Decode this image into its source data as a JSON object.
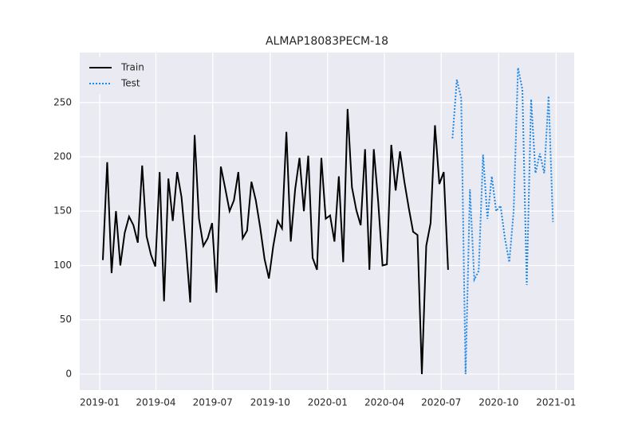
{
  "chart_data": {
    "type": "line",
    "title": "ALMAP18083PECM-18",
    "series": [
      {
        "name": "Train",
        "color": "#000000",
        "dash": "solid",
        "x": [
          "2019-01-06",
          "2019-01-13",
          "2019-01-20",
          "2019-01-27",
          "2019-02-03",
          "2019-02-10",
          "2019-02-17",
          "2019-02-24",
          "2019-03-03",
          "2019-03-10",
          "2019-03-17",
          "2019-03-24",
          "2019-03-31",
          "2019-04-07",
          "2019-04-14",
          "2019-04-21",
          "2019-04-28",
          "2019-05-05",
          "2019-05-12",
          "2019-05-19",
          "2019-05-26",
          "2019-06-02",
          "2019-06-09",
          "2019-06-16",
          "2019-06-23",
          "2019-06-30",
          "2019-07-07",
          "2019-07-14",
          "2019-07-21",
          "2019-07-28",
          "2019-08-04",
          "2019-08-11",
          "2019-08-18",
          "2019-08-25",
          "2019-09-01",
          "2019-09-08",
          "2019-09-15",
          "2019-09-22",
          "2019-09-29",
          "2019-10-06",
          "2019-10-13",
          "2019-10-20",
          "2019-10-27",
          "2019-11-03",
          "2019-11-10",
          "2019-11-17",
          "2019-11-24",
          "2019-12-01",
          "2019-12-08",
          "2019-12-15",
          "2019-12-22",
          "2019-12-29",
          "2020-01-05",
          "2020-01-12",
          "2020-01-19",
          "2020-01-26",
          "2020-02-02",
          "2020-02-09",
          "2020-02-16",
          "2020-02-23",
          "2020-03-01",
          "2020-03-08",
          "2020-03-15",
          "2020-03-22",
          "2020-03-29",
          "2020-04-05",
          "2020-04-12",
          "2020-04-19",
          "2020-04-26",
          "2020-05-03",
          "2020-05-10",
          "2020-05-17",
          "2020-05-24",
          "2020-05-31",
          "2020-06-07",
          "2020-06-14",
          "2020-06-21",
          "2020-06-28",
          "2020-07-05",
          "2020-07-12"
        ],
        "values": [
          105,
          195,
          93,
          150,
          100,
          130,
          145,
          137,
          121,
          192,
          127,
          110,
          99,
          186,
          67,
          180,
          141,
          186,
          163,
          118,
          66,
          220,
          143,
          118,
          125,
          139,
          75,
          191,
          171,
          150,
          160,
          186,
          125,
          132,
          177,
          160,
          135,
          106,
          88,
          118,
          141,
          134,
          223,
          122,
          170,
          199,
          150,
          201,
          107,
          96,
          199,
          143,
          146,
          122,
          182,
          103,
          244,
          172,
          151,
          137,
          207,
          96,
          207,
          159,
          100,
          101,
          211,
          169,
          205,
          177,
          153,
          131,
          128,
          0,
          118,
          139,
          229,
          175,
          186,
          96
        ]
      },
      {
        "name": "Test",
        "color": "#1e88e5",
        "dash": "dotted",
        "x": [
          "2020-07-19",
          "2020-07-26",
          "2020-08-02",
          "2020-08-09",
          "2020-08-16",
          "2020-08-23",
          "2020-08-30",
          "2020-09-06",
          "2020-09-13",
          "2020-09-20",
          "2020-09-27",
          "2020-10-04",
          "2020-10-11",
          "2020-10-18",
          "2020-10-25",
          "2020-11-01",
          "2020-11-08",
          "2020-11-15",
          "2020-11-22",
          "2020-11-29",
          "2020-12-06",
          "2020-12-13",
          "2020-12-20",
          "2020-12-27"
        ],
        "values": [
          217,
          271,
          254,
          0,
          170,
          87,
          95,
          202,
          143,
          182,
          150,
          155,
          125,
          103,
          150,
          282,
          262,
          82,
          253,
          185,
          203,
          185,
          256,
          140
        ]
      }
    ],
    "xlim": [
      "2018-11-30",
      "2021-01-30"
    ],
    "xticks": [
      {
        "value": "2019-01-01",
        "label": "2019-01"
      },
      {
        "value": "2019-04-01",
        "label": "2019-04"
      },
      {
        "value": "2019-07-01",
        "label": "2019-07"
      },
      {
        "value": "2019-10-01",
        "label": "2019-10"
      },
      {
        "value": "2020-01-01",
        "label": "2020-01"
      },
      {
        "value": "2020-04-01",
        "label": "2020-04"
      },
      {
        "value": "2020-07-01",
        "label": "2020-07"
      },
      {
        "value": "2020-10-01",
        "label": "2020-10"
      },
      {
        "value": "2021-01-01",
        "label": "2021-01"
      }
    ],
    "ylim": [
      -14.7,
      296
    ],
    "yticks": [
      0,
      50,
      100,
      150,
      200,
      250
    ],
    "grid": true,
    "legend": "upper left"
  }
}
